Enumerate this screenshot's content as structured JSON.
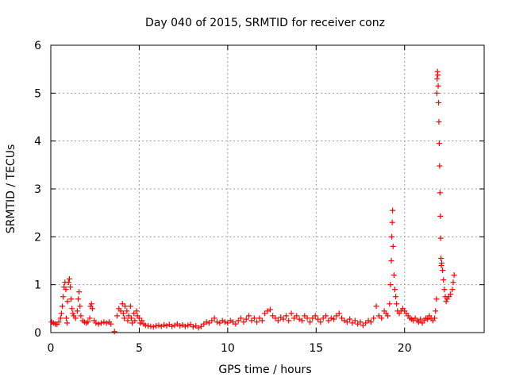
{
  "chart_data": {
    "type": "scatter",
    "title": "Day 040 of 2015, SRMTID for receiver conz",
    "xlabel": "GPS time / hours",
    "ylabel": "SRMTID / TECUs",
    "xlim": [
      0,
      24.5
    ],
    "ylim": [
      0,
      6
    ],
    "xticks": [
      0,
      5,
      10,
      15,
      20
    ],
    "yticks": [
      0,
      1,
      2,
      3,
      4,
      5,
      6
    ],
    "grid": true,
    "marker": "+",
    "series": [
      {
        "name": "SRMTID",
        "color": "#ff0000",
        "points": [
          [
            0.05,
            0.22
          ],
          [
            0.15,
            0.2
          ],
          [
            0.25,
            0.18
          ],
          [
            0.35,
            0.17
          ],
          [
            0.45,
            0.22
          ],
          [
            0.55,
            0.3
          ],
          [
            0.6,
            0.4
          ],
          [
            0.65,
            0.55
          ],
          [
            0.7,
            0.75
          ],
          [
            0.75,
            0.95
          ],
          [
            0.8,
            1.05
          ],
          [
            0.85,
            0.9
          ],
          [
            0.88,
            0.3
          ],
          [
            0.92,
            0.2
          ],
          [
            0.95,
            0.65
          ],
          [
            1.0,
            1.05
          ],
          [
            1.05,
            1.12
          ],
          [
            1.1,
            0.95
          ],
          [
            1.15,
            0.7
          ],
          [
            1.2,
            0.5
          ],
          [
            1.25,
            0.4
          ],
          [
            1.3,
            0.35
          ],
          [
            1.4,
            0.3
          ],
          [
            1.5,
            0.45
          ],
          [
            1.55,
            0.7
          ],
          [
            1.6,
            0.85
          ],
          [
            1.65,
            0.55
          ],
          [
            1.7,
            0.35
          ],
          [
            1.8,
            0.25
          ],
          [
            1.9,
            0.22
          ],
          [
            2.0,
            0.2
          ],
          [
            2.1,
            0.22
          ],
          [
            2.2,
            0.3
          ],
          [
            2.25,
            0.55
          ],
          [
            2.3,
            0.6
          ],
          [
            2.35,
            0.5
          ],
          [
            2.45,
            0.25
          ],
          [
            2.55,
            0.2
          ],
          [
            2.7,
            0.18
          ],
          [
            2.85,
            0.2
          ],
          [
            3.0,
            0.22
          ],
          [
            3.15,
            0.2
          ],
          [
            3.3,
            0.22
          ],
          [
            3.4,
            0.18
          ],
          [
            3.6,
            0.02
          ],
          [
            3.75,
            0.35
          ],
          [
            3.85,
            0.5
          ],
          [
            3.95,
            0.45
          ],
          [
            4.05,
            0.6
          ],
          [
            4.1,
            0.4
          ],
          [
            4.15,
            0.3
          ],
          [
            4.2,
            0.55
          ],
          [
            4.3,
            0.45
          ],
          [
            4.35,
            0.25
          ],
          [
            4.4,
            0.35
          ],
          [
            4.5,
            0.55
          ],
          [
            4.55,
            0.3
          ],
          [
            4.6,
            0.2
          ],
          [
            4.7,
            0.4
          ],
          [
            4.75,
            0.25
          ],
          [
            4.85,
            0.45
          ],
          [
            4.9,
            0.35
          ],
          [
            5.0,
            0.3
          ],
          [
            5.05,
            0.2
          ],
          [
            5.15,
            0.25
          ],
          [
            5.25,
            0.18
          ],
          [
            5.35,
            0.15
          ],
          [
            5.5,
            0.14
          ],
          [
            5.65,
            0.13
          ],
          [
            5.8,
            0.12
          ],
          [
            5.95,
            0.14
          ],
          [
            6.1,
            0.15
          ],
          [
            6.25,
            0.13
          ],
          [
            6.4,
            0.16
          ],
          [
            6.55,
            0.14
          ],
          [
            6.7,
            0.17
          ],
          [
            6.85,
            0.13
          ],
          [
            7.0,
            0.15
          ],
          [
            7.15,
            0.18
          ],
          [
            7.3,
            0.14
          ],
          [
            7.45,
            0.16
          ],
          [
            7.6,
            0.13
          ],
          [
            7.75,
            0.15
          ],
          [
            7.9,
            0.17
          ],
          [
            8.05,
            0.12
          ],
          [
            8.2,
            0.14
          ],
          [
            8.35,
            0.1
          ],
          [
            8.5,
            0.13
          ],
          [
            8.65,
            0.18
          ],
          [
            8.8,
            0.22
          ],
          [
            8.95,
            0.2
          ],
          [
            9.1,
            0.25
          ],
          [
            9.25,
            0.3
          ],
          [
            9.4,
            0.22
          ],
          [
            9.55,
            0.2
          ],
          [
            9.7,
            0.25
          ],
          [
            9.85,
            0.22
          ],
          [
            10.0,
            0.2
          ],
          [
            10.15,
            0.25
          ],
          [
            10.3,
            0.22
          ],
          [
            10.45,
            0.18
          ],
          [
            10.6,
            0.25
          ],
          [
            10.75,
            0.3
          ],
          [
            10.9,
            0.22
          ],
          [
            11.05,
            0.28
          ],
          [
            11.2,
            0.35
          ],
          [
            11.35,
            0.25
          ],
          [
            11.5,
            0.3
          ],
          [
            11.65,
            0.22
          ],
          [
            11.8,
            0.3
          ],
          [
            11.95,
            0.25
          ],
          [
            12.1,
            0.4
          ],
          [
            12.25,
            0.45
          ],
          [
            12.4,
            0.48
          ],
          [
            12.55,
            0.35
          ],
          [
            12.7,
            0.3
          ],
          [
            12.85,
            0.25
          ],
          [
            13.0,
            0.32
          ],
          [
            13.15,
            0.28
          ],
          [
            13.3,
            0.35
          ],
          [
            13.45,
            0.25
          ],
          [
            13.6,
            0.4
          ],
          [
            13.75,
            0.3
          ],
          [
            13.9,
            0.35
          ],
          [
            14.05,
            0.28
          ],
          [
            14.2,
            0.25
          ],
          [
            14.35,
            0.35
          ],
          [
            14.5,
            0.3
          ],
          [
            14.65,
            0.22
          ],
          [
            14.8,
            0.3
          ],
          [
            14.95,
            0.35
          ],
          [
            15.1,
            0.28
          ],
          [
            15.25,
            0.22
          ],
          [
            15.4,
            0.3
          ],
          [
            15.55,
            0.35
          ],
          [
            15.7,
            0.25
          ],
          [
            15.85,
            0.3
          ],
          [
            16.0,
            0.28
          ],
          [
            16.15,
            0.35
          ],
          [
            16.3,
            0.4
          ],
          [
            16.45,
            0.3
          ],
          [
            16.6,
            0.25
          ],
          [
            16.75,
            0.22
          ],
          [
            16.9,
            0.28
          ],
          [
            17.05,
            0.2
          ],
          [
            17.2,
            0.25
          ],
          [
            17.35,
            0.18
          ],
          [
            17.5,
            0.22
          ],
          [
            17.65,
            0.15
          ],
          [
            17.8,
            0.2
          ],
          [
            17.95,
            0.25
          ],
          [
            18.1,
            0.22
          ],
          [
            18.25,
            0.3
          ],
          [
            18.4,
            0.55
          ],
          [
            18.55,
            0.35
          ],
          [
            18.7,
            0.3
          ],
          [
            18.85,
            0.45
          ],
          [
            18.95,
            0.4
          ],
          [
            19.05,
            0.35
          ],
          [
            19.15,
            0.6
          ],
          [
            19.2,
            1.0
          ],
          [
            19.25,
            1.5
          ],
          [
            19.28,
            2.0
          ],
          [
            19.3,
            2.3
          ],
          [
            19.32,
            2.55
          ],
          [
            19.35,
            1.8
          ],
          [
            19.4,
            1.2
          ],
          [
            19.45,
            0.9
          ],
          [
            19.5,
            0.75
          ],
          [
            19.55,
            0.6
          ],
          [
            19.6,
            0.45
          ],
          [
            19.7,
            0.4
          ],
          [
            19.8,
            0.45
          ],
          [
            19.9,
            0.5
          ],
          [
            20.0,
            0.45
          ],
          [
            20.1,
            0.4
          ],
          [
            20.2,
            0.35
          ],
          [
            20.3,
            0.3
          ],
          [
            20.4,
            0.28
          ],
          [
            20.5,
            0.25
          ],
          [
            20.6,
            0.3
          ],
          [
            20.7,
            0.25
          ],
          [
            20.8,
            0.22
          ],
          [
            20.9,
            0.28
          ],
          [
            21.0,
            0.2
          ],
          [
            21.1,
            0.25
          ],
          [
            21.2,
            0.3
          ],
          [
            21.3,
            0.28
          ],
          [
            21.4,
            0.35
          ],
          [
            21.5,
            0.3
          ],
          [
            21.6,
            0.25
          ],
          [
            21.7,
            0.3
          ],
          [
            21.75,
            0.45
          ],
          [
            21.8,
            0.7
          ],
          [
            21.82,
            5.0
          ],
          [
            21.84,
            5.3
          ],
          [
            21.86,
            5.45
          ],
          [
            21.88,
            5.38
          ],
          [
            21.9,
            5.15
          ],
          [
            21.92,
            4.8
          ],
          [
            21.94,
            4.4
          ],
          [
            21.96,
            3.95
          ],
          [
            21.98,
            3.48
          ],
          [
            22.0,
            2.92
          ],
          [
            22.02,
            2.43
          ],
          [
            22.04,
            1.97
          ],
          [
            22.06,
            1.55
          ],
          [
            22.08,
            1.4
          ],
          [
            22.1,
            1.45
          ],
          [
            22.15,
            1.3
          ],
          [
            22.2,
            1.1
          ],
          [
            22.25,
            0.9
          ],
          [
            22.3,
            0.75
          ],
          [
            22.35,
            0.65
          ],
          [
            22.4,
            0.7
          ],
          [
            22.5,
            0.75
          ],
          [
            22.6,
            0.8
          ],
          [
            22.7,
            0.9
          ],
          [
            22.75,
            1.05
          ],
          [
            22.8,
            1.2
          ]
        ]
      }
    ]
  }
}
